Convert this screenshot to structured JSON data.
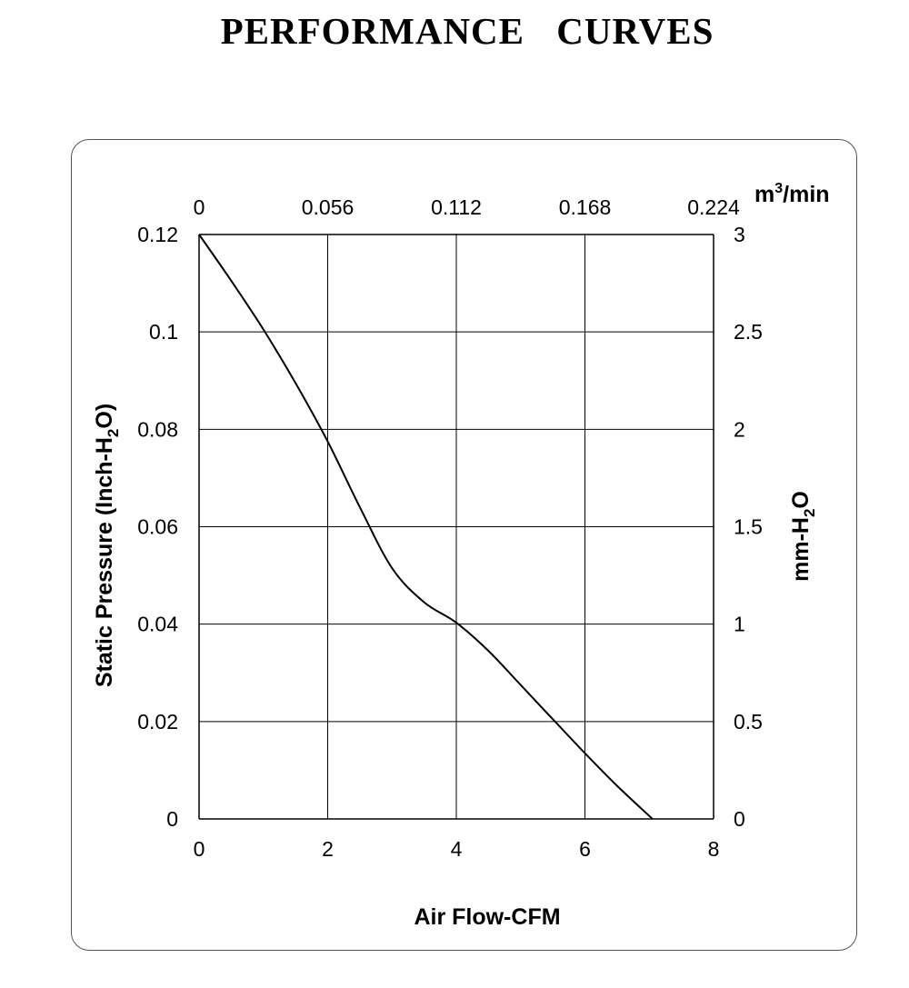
{
  "page": {
    "title": "PERFORMANCE    CURVES"
  },
  "chart_data": {
    "type": "line",
    "title": "PERFORMANCE    CURVES",
    "xlabel": "Air Flow-CFM",
    "ylabel_left": "Static Pressure (Inch-H2O)",
    "ylabel_right": "mm-H2O",
    "xlabel_top": "m3/min",
    "xlim": [
      0,
      8
    ],
    "ylim": [
      0,
      0.12
    ],
    "x_ticks": [
      "0",
      "2",
      "4",
      "6",
      "8"
    ],
    "y_ticks": [
      "0",
      "0.02",
      "0.04",
      "0.06",
      "0.08",
      "0.1",
      "0.12"
    ],
    "top_x_ticks": [
      "0",
      "0.056",
      "0.112",
      "0.168",
      "0.224"
    ],
    "right_y_ticks": [
      "0",
      "0.5",
      "1",
      "1.5",
      "2",
      "2.5",
      "3"
    ],
    "grid": true,
    "series": [
      {
        "x": [
          0,
          0.5,
          1.0,
          1.5,
          2.0,
          2.5,
          3.0,
          3.5,
          4.0,
          4.5,
          5.0,
          5.5,
          6.0,
          6.5,
          7.05
        ],
        "y": [
          0.12,
          0.1105,
          0.1005,
          0.0895,
          0.0775,
          0.064,
          0.0515,
          0.0445,
          0.0403,
          0.0345,
          0.0275,
          0.0205,
          0.0135,
          0.0068,
          0.0
        ]
      }
    ]
  }
}
